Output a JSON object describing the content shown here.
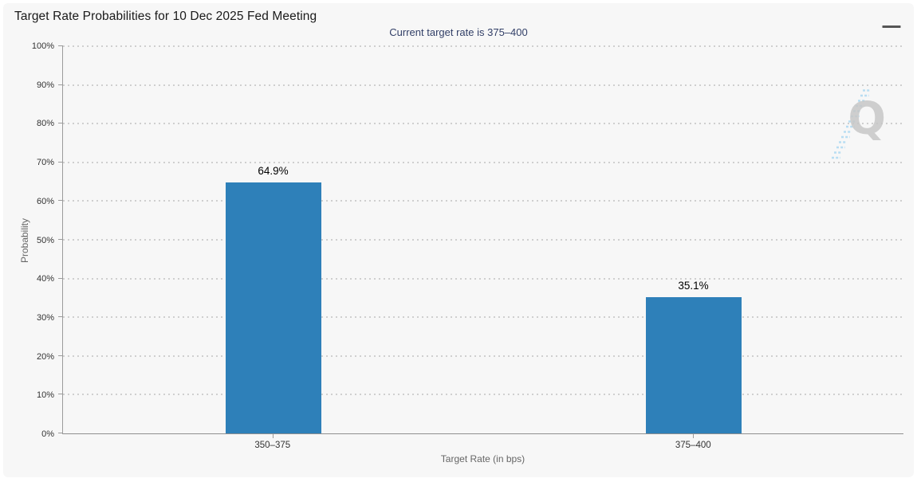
{
  "header": {
    "title": "Target Rate Probabilities for 10 Dec 2025 Fed Meeting",
    "subtitle": "Current target rate is 375–400"
  },
  "menu": {
    "icon": "hamburger-icon",
    "tooltip": "Chart context menu"
  },
  "chart_data": {
    "type": "bar",
    "title": "Target Rate Probabilities for 10 Dec 2025 Fed Meeting",
    "subtitle": "Current target rate is 375–400",
    "categories": [
      "350–375",
      "375–400"
    ],
    "values": [
      64.9,
      35.1
    ],
    "value_labels": [
      "64.9%",
      "35.1%"
    ],
    "xlabel": "Target Rate (in bps)",
    "ylabel": "Probability",
    "ylim": [
      0,
      100
    ],
    "ytick_step": 10,
    "ytick_labels": [
      "0%",
      "10%",
      "20%",
      "30%",
      "40%",
      "50%",
      "60%",
      "70%",
      "80%",
      "90%",
      "100%"
    ],
    "grid": "horizontal-dotted",
    "legend": "none",
    "bar_color": "#2e80b9",
    "watermark": "Q"
  },
  "colors": {
    "card_background": "#f7f7f7",
    "bar": "#2e80b9",
    "title_text": "#1a1a1a",
    "subtitle_text": "#334068",
    "axis_label_text": "#333333",
    "axis_title_text": "#666666",
    "axis_line": "#9b9b9b",
    "grid_dot": "#cfcfcf",
    "watermark_q": "#c7c7c7",
    "watermark_dash": "#b8ddf2"
  }
}
